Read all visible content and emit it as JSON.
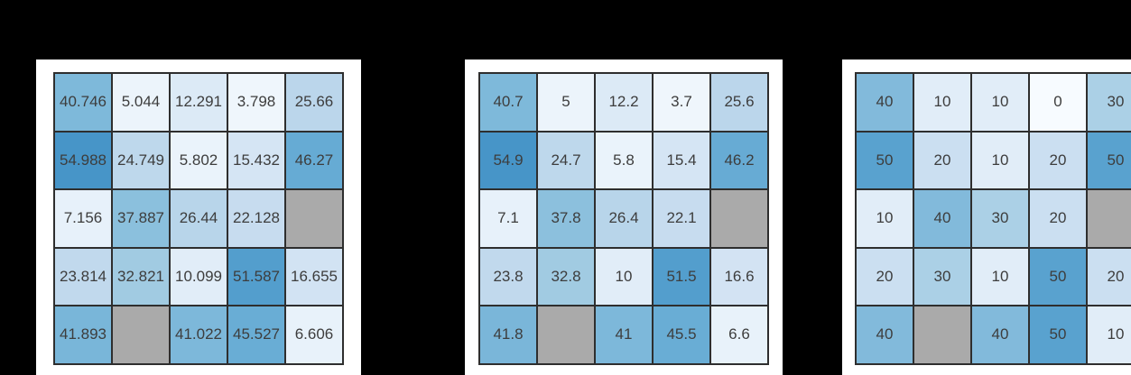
{
  "layout": {
    "canvas_background": "#000000",
    "panel_background": "#ffffff"
  },
  "style": {
    "border_color": "#2e2e2e",
    "text_color": "#3d3d3d",
    "nan_color": "#aaaaaa",
    "colormap_name": "Blues",
    "colormap_stops": [
      "#f7fbff",
      "#deebf7",
      "#c6dbef",
      "#9ecae1",
      "#6baed6",
      "#4292c6",
      "#2171b5",
      "#08519c",
      "#08306b"
    ],
    "colormap_domain_max": 90
  },
  "chart_data": [
    {
      "type": "heatmap",
      "grid": {
        "rows": 5,
        "cols": 5
      },
      "legend": "none",
      "cells": [
        [
          "40.746",
          "5.044",
          "12.291",
          "3.798",
          "25.66"
        ],
        [
          "54.988",
          "24.749",
          "5.802",
          "15.432",
          "46.27"
        ],
        [
          "7.156",
          "37.887",
          "26.44",
          "22.128",
          ""
        ],
        [
          "23.814",
          "32.821",
          "10.099",
          "51.587",
          "16.655"
        ],
        [
          "41.893",
          "",
          "41.022",
          "45.527",
          "6.606"
        ]
      ],
      "values": [
        [
          40.746,
          5.044,
          12.291,
          3.798,
          25.66
        ],
        [
          54.988,
          24.749,
          5.802,
          15.432,
          46.27
        ],
        [
          7.156,
          37.887,
          26.44,
          22.128,
          null
        ],
        [
          23.814,
          32.821,
          10.099,
          51.587,
          16.655
        ],
        [
          41.893,
          null,
          41.022,
          45.527,
          6.606
        ]
      ]
    },
    {
      "type": "heatmap",
      "grid": {
        "rows": 5,
        "cols": 5
      },
      "legend": "none",
      "cells": [
        [
          "40.7",
          "5",
          "12.2",
          "3.7",
          "25.6"
        ],
        [
          "54.9",
          "24.7",
          "5.8",
          "15.4",
          "46.2"
        ],
        [
          "7.1",
          "37.8",
          "26.4",
          "22.1",
          ""
        ],
        [
          "23.8",
          "32.8",
          "10",
          "51.5",
          "16.6"
        ],
        [
          "41.8",
          "",
          "41",
          "45.5",
          "6.6"
        ]
      ],
      "values": [
        [
          40.7,
          5,
          12.2,
          3.7,
          25.6
        ],
        [
          54.9,
          24.7,
          5.8,
          15.4,
          46.2
        ],
        [
          7.1,
          37.8,
          26.4,
          22.1,
          null
        ],
        [
          23.8,
          32.8,
          10,
          51.5,
          16.6
        ],
        [
          41.8,
          null,
          41,
          45.5,
          6.6
        ]
      ]
    },
    {
      "type": "heatmap",
      "grid": {
        "rows": 5,
        "cols": 5
      },
      "legend": "none",
      "cells": [
        [
          "40",
          "10",
          "10",
          "0",
          "30"
        ],
        [
          "50",
          "20",
          "10",
          "20",
          "50"
        ],
        [
          "10",
          "40",
          "30",
          "20",
          ""
        ],
        [
          "20",
          "30",
          "10",
          "50",
          "20"
        ],
        [
          "40",
          "",
          "40",
          "50",
          "10"
        ]
      ],
      "values": [
        [
          40,
          10,
          10,
          0,
          30
        ],
        [
          50,
          20,
          10,
          20,
          50
        ],
        [
          10,
          40,
          30,
          20,
          null
        ],
        [
          20,
          30,
          10,
          50,
          20
        ],
        [
          40,
          null,
          40,
          50,
          10
        ]
      ]
    }
  ]
}
